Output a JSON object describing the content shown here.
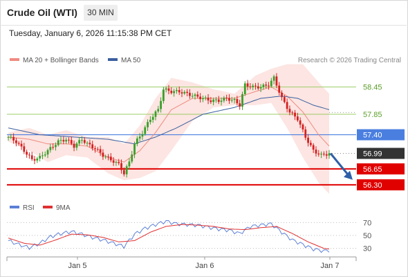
{
  "header": {
    "title": "Crude Oil (WTI)",
    "timeframe": "30 MIN"
  },
  "timestamp": "Tuesday, January 6, 2026 11:15:38 PM CET",
  "colors": {
    "bollinger": "#f08a80",
    "bollinger_fill": "#fce0dd",
    "ma50": "#3a5fa0",
    "resistance": "#9ccc65",
    "pivot": "#4a7fe0",
    "support": "#e00000",
    "last_price": "#333333",
    "candle_up": "#3a9e2a",
    "candle_down": "#d42020",
    "rsi": "#5b7fd6",
    "rsi_ma": "#e03030",
    "arrow": "#2f5fa8"
  },
  "chart_data": [
    {
      "type": "candlestick",
      "legend": [
        {
          "name": "MA 20 + Bollinger Bands",
          "color": "#f08a80"
        },
        {
          "name": "MA 50",
          "color": "#3a5fa0"
        }
      ],
      "copyright": "Research © 2026 Trading Central",
      "x_ticks": [
        "Jan 5",
        "Jan 6",
        "Jan 7"
      ],
      "ylim": [
        56.1,
        58.9
      ],
      "levels": [
        {
          "value": 58.45,
          "label": "58.45",
          "kind": "resistance"
        },
        {
          "value": 57.85,
          "label": "57.85",
          "kind": "resistance"
        },
        {
          "value": 57.4,
          "label": "57.40",
          "kind": "pivot"
        },
        {
          "value": 56.99,
          "label": "56.99",
          "kind": "last_price"
        },
        {
          "value": 56.65,
          "label": "56.65",
          "kind": "support"
        },
        {
          "value": 56.3,
          "label": "56.30",
          "kind": "support"
        }
      ],
      "close_anchors": [
        [
          0,
          57.35
        ],
        [
          3,
          57.25
        ],
        [
          6,
          57.05
        ],
        [
          9,
          56.85
        ],
        [
          12,
          56.9
        ],
        [
          15,
          57.05
        ],
        [
          19,
          57.25
        ],
        [
          22,
          57.3
        ],
        [
          25,
          57.15
        ],
        [
          28,
          57.3
        ],
        [
          30,
          57.2
        ],
        [
          33,
          57.1
        ],
        [
          36,
          56.95
        ],
        [
          39,
          56.85
        ],
        [
          42,
          56.75
        ],
        [
          44,
          56.55
        ],
        [
          46,
          56.8
        ],
        [
          48,
          57.2
        ],
        [
          51,
          57.45
        ],
        [
          54,
          57.75
        ],
        [
          57,
          57.95
        ],
        [
          59,
          58.4
        ],
        [
          62,
          58.35
        ],
        [
          65,
          58.35
        ],
        [
          68,
          58.3
        ],
        [
          71,
          58.25
        ],
        [
          74,
          58.2
        ],
        [
          77,
          58.15
        ],
        [
          80,
          58.15
        ],
        [
          83,
          58.2
        ],
        [
          86,
          58.15
        ],
        [
          88,
          58.05
        ],
        [
          90,
          58.5
        ],
        [
          93,
          58.45
        ],
        [
          96,
          58.45
        ],
        [
          99,
          58.5
        ],
        [
          101,
          58.65
        ],
        [
          104,
          58.2
        ],
        [
          107,
          57.9
        ],
        [
          110,
          57.75
        ],
        [
          113,
          57.35
        ],
        [
          116,
          57.05
        ],
        [
          119,
          56.95
        ],
        [
          122,
          56.99
        ]
      ],
      "bollinger_anchors": [
        [
          0,
          57.35,
          57.45,
          57.25
        ],
        [
          8,
          57.3,
          57.55,
          57.05
        ],
        [
          15,
          57.2,
          57.4,
          56.8
        ],
        [
          22,
          57.2,
          57.5,
          56.95
        ],
        [
          30,
          57.15,
          57.35,
          56.9
        ],
        [
          38,
          56.9,
          57.35,
          56.55
        ],
        [
          44,
          56.8,
          57.2,
          56.4
        ],
        [
          50,
          57.05,
          57.6,
          56.45
        ],
        [
          56,
          57.45,
          58.2,
          56.6
        ],
        [
          62,
          57.95,
          58.65,
          57.05
        ],
        [
          70,
          58.2,
          58.55,
          57.7
        ],
        [
          78,
          58.2,
          58.4,
          58.0
        ],
        [
          86,
          58.2,
          58.3,
          58.05
        ],
        [
          94,
          58.35,
          58.7,
          58.05
        ],
        [
          100,
          58.45,
          58.85,
          58.1
        ],
        [
          106,
          58.25,
          58.95,
          57.55
        ],
        [
          112,
          57.9,
          58.95,
          56.9
        ],
        [
          118,
          57.4,
          58.55,
          56.35
        ],
        [
          122,
          57.15,
          58.3,
          56.1
        ]
      ],
      "ma50_anchors": [
        [
          0,
          57.55
        ],
        [
          12,
          57.4
        ],
        [
          25,
          57.35
        ],
        [
          38,
          57.3
        ],
        [
          48,
          57.2
        ],
        [
          56,
          57.35
        ],
        [
          64,
          57.55
        ],
        [
          74,
          57.85
        ],
        [
          86,
          58.0
        ],
        [
          96,
          58.2
        ],
        [
          104,
          58.25
        ],
        [
          110,
          58.2
        ],
        [
          116,
          58.05
        ],
        [
          122,
          57.95
        ]
      ],
      "projection": {
        "from": 56.99,
        "to": 56.35
      }
    },
    {
      "type": "line",
      "legend": [
        {
          "name": "RSI",
          "color": "#5b7fd6"
        },
        {
          "name": "9MA",
          "color": "#e03030"
        }
      ],
      "ylim": [
        20,
        80
      ],
      "y_ticks": [
        70,
        50,
        30
      ],
      "rsi_anchors": [
        [
          0,
          42
        ],
        [
          4,
          36
        ],
        [
          8,
          31
        ],
        [
          12,
          38
        ],
        [
          16,
          48
        ],
        [
          20,
          53
        ],
        [
          24,
          56
        ],
        [
          28,
          52
        ],
        [
          32,
          47
        ],
        [
          36,
          43
        ],
        [
          40,
          38
        ],
        [
          44,
          33
        ],
        [
          48,
          52
        ],
        [
          52,
          61
        ],
        [
          56,
          67
        ],
        [
          60,
          72
        ],
        [
          64,
          68
        ],
        [
          68,
          67
        ],
        [
          72,
          66
        ],
        [
          76,
          63
        ],
        [
          80,
          60
        ],
        [
          84,
          58
        ],
        [
          88,
          53
        ],
        [
          92,
          64
        ],
        [
          96,
          66
        ],
        [
          100,
          68
        ],
        [
          104,
          55
        ],
        [
          108,
          43
        ],
        [
          112,
          36
        ],
        [
          116,
          29
        ],
        [
          120,
          26
        ],
        [
          122,
          27
        ]
      ],
      "ma_anchors": [
        [
          0,
          46
        ],
        [
          6,
          38
        ],
        [
          12,
          35
        ],
        [
          18,
          43
        ],
        [
          24,
          52
        ],
        [
          30,
          51
        ],
        [
          36,
          47
        ],
        [
          42,
          40
        ],
        [
          48,
          42
        ],
        [
          54,
          55
        ],
        [
          60,
          64
        ],
        [
          66,
          67
        ],
        [
          72,
          66
        ],
        [
          78,
          64
        ],
        [
          84,
          60
        ],
        [
          90,
          59
        ],
        [
          96,
          62
        ],
        [
          102,
          64
        ],
        [
          108,
          53
        ],
        [
          114,
          40
        ],
        [
          120,
          30
        ],
        [
          122,
          29
        ]
      ]
    }
  ]
}
